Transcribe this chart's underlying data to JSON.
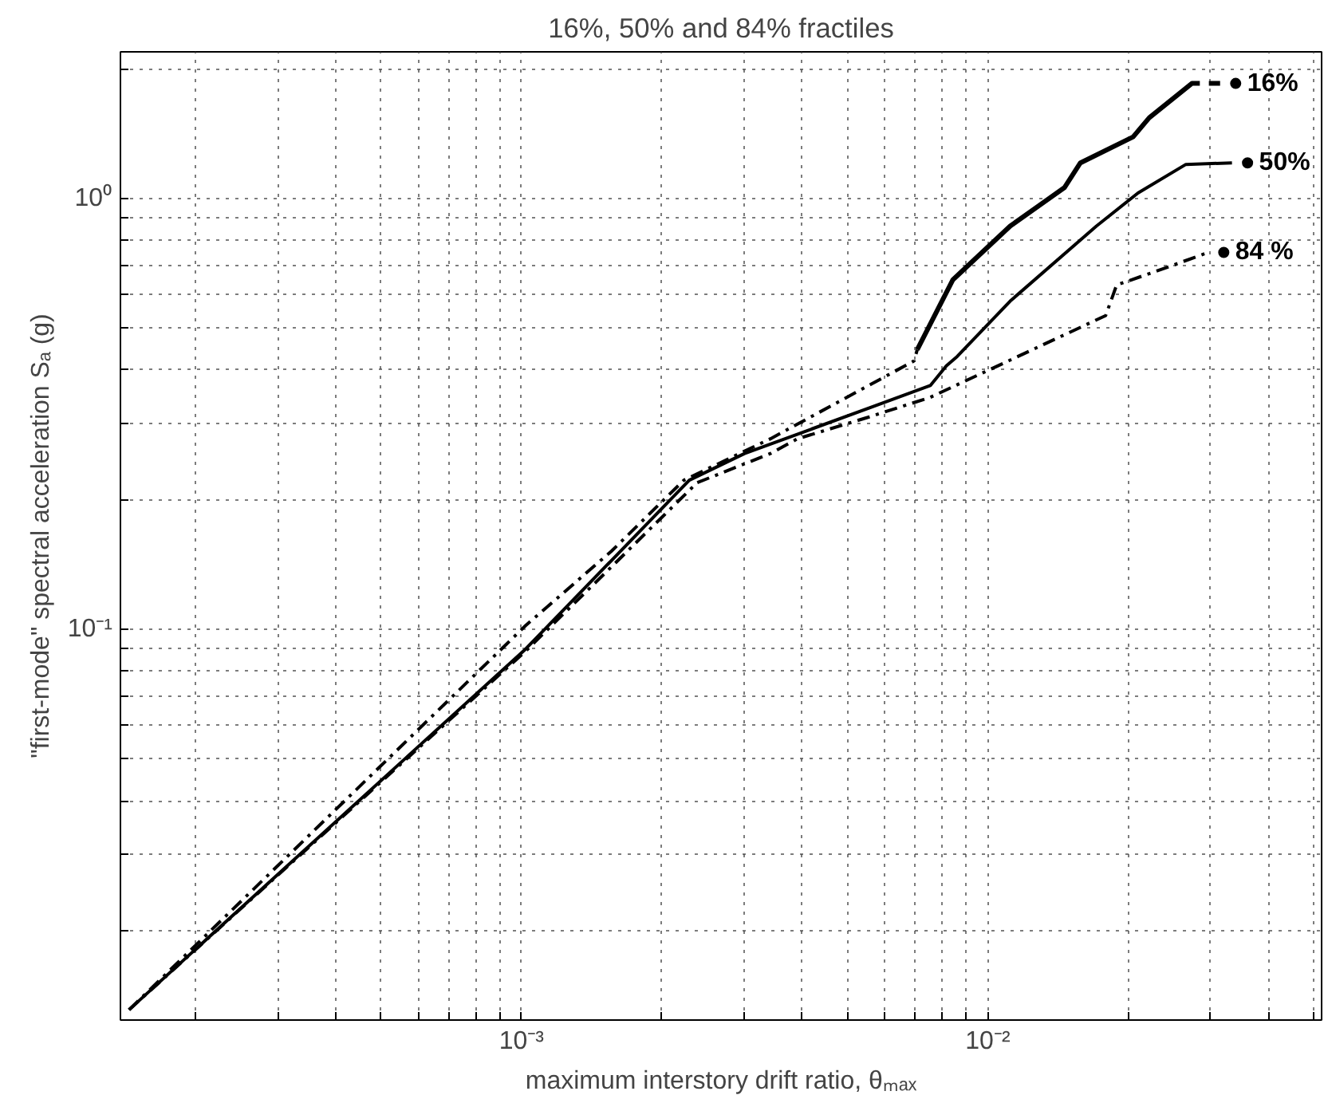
{
  "chart_data": {
    "type": "line",
    "title": "16%, 50% and 84% fractiles",
    "xlabel": "maximum interstory drift ratio, θₘₐₓ",
    "ylabel": "\"first-mode\" spectral acceleration Sₐ (g)",
    "log": "xy",
    "grid": true,
    "marker": "none",
    "legend": "right",
    "xlim": [
      0.000138,
      0.052
    ],
    "ylim": [
      0.0124,
      2.19
    ],
    "xticks": [
      {
        "value": 0.0002,
        "label": null
      },
      {
        "value": 0.0003,
        "label": null
      },
      {
        "value": 0.0004,
        "label": null
      },
      {
        "value": 0.0005,
        "label": null
      },
      {
        "value": 0.0006,
        "label": null
      },
      {
        "value": 0.0007,
        "label": null
      },
      {
        "value": 0.0008,
        "label": null
      },
      {
        "value": 0.0009,
        "label": null
      },
      {
        "value": 0.001,
        "label": "10⁻³"
      },
      {
        "value": 0.002,
        "label": null
      },
      {
        "value": 0.003,
        "label": null
      },
      {
        "value": 0.004,
        "label": null
      },
      {
        "value": 0.005,
        "label": null
      },
      {
        "value": 0.006,
        "label": null
      },
      {
        "value": 0.007,
        "label": null
      },
      {
        "value": 0.008,
        "label": null
      },
      {
        "value": 0.009,
        "label": null
      },
      {
        "value": 0.01,
        "label": "10⁻²"
      },
      {
        "value": 0.02,
        "label": null
      },
      {
        "value": 0.03,
        "label": null
      },
      {
        "value": 0.04,
        "label": null
      },
      {
        "value": 0.05,
        "label": null
      }
    ],
    "yticks": [
      {
        "value": 0.02,
        "label": null
      },
      {
        "value": 0.03,
        "label": null
      },
      {
        "value": 0.04,
        "label": null
      },
      {
        "value": 0.05,
        "label": null
      },
      {
        "value": 0.06,
        "label": null
      },
      {
        "value": 0.07,
        "label": null
      },
      {
        "value": 0.08,
        "label": null
      },
      {
        "value": 0.09,
        "label": null
      },
      {
        "value": 0.1,
        "label": "10⁻¹"
      },
      {
        "value": 0.2,
        "label": null
      },
      {
        "value": 0.3,
        "label": null
      },
      {
        "value": 0.4,
        "label": null
      },
      {
        "value": 0.5,
        "label": null
      },
      {
        "value": 0.6,
        "label": null
      },
      {
        "value": 0.7,
        "label": null
      },
      {
        "value": 0.8,
        "label": null
      },
      {
        "value": 0.9,
        "label": null
      },
      {
        "value": 1,
        "label": "10⁰"
      },
      {
        "value": 2,
        "label": null
      }
    ],
    "series": [
      {
        "color": "#000000",
        "line_style": "dashed",
        "x": [
          0.000144,
          0.00102,
          0.00156,
          0.00223,
          0.00342,
          0.00695,
          0.00706
        ],
        "values": [
          0.0131,
          0.102,
          0.152,
          0.222,
          0.277,
          0.42,
          0.446
        ]
      },
      {
        "name": "16%",
        "color": "#000000",
        "line_style": "solid",
        "x": [
          0.00706,
          0.00842,
          0.01117,
          0.0146,
          0.0158,
          0.0205,
          0.0222,
          0.0274,
          0.0285,
          0.029,
          0.0298,
          0.0315
        ],
        "values": [
          0.446,
          0.648,
          0.863,
          1.06,
          1.21,
          1.39,
          1.54,
          1.85,
          1.85,
          null,
          1.85,
          1.85
        ]
      },
      {
        "name": "50%",
        "color": "#000000",
        "line_style": "solid",
        "x": [
          0.000144,
          0.00102,
          0.00229,
          0.00301,
          0.00753,
          0.00815,
          0.0086,
          0.01117,
          0.0171,
          0.021,
          0.0266,
          0.0334
        ],
        "values": [
          0.0131,
          0.09,
          0.222,
          0.256,
          0.368,
          0.409,
          0.43,
          0.578,
          0.863,
          1.03,
          1.2,
          1.21
        ]
      },
      {
        "name": "84 %",
        "color": "#000000",
        "line_style": "dashed",
        "x": [
          0.000144,
          0.00102,
          0.00238,
          0.00342,
          0.00391,
          0.0055,
          0.0075,
          0.0179,
          0.0189,
          0.0245,
          0.0297
        ],
        "values": [
          0.0131,
          0.089,
          0.219,
          0.256,
          0.277,
          0.31,
          0.345,
          0.535,
          0.63,
          0.695,
          0.75
        ]
      }
    ]
  }
}
